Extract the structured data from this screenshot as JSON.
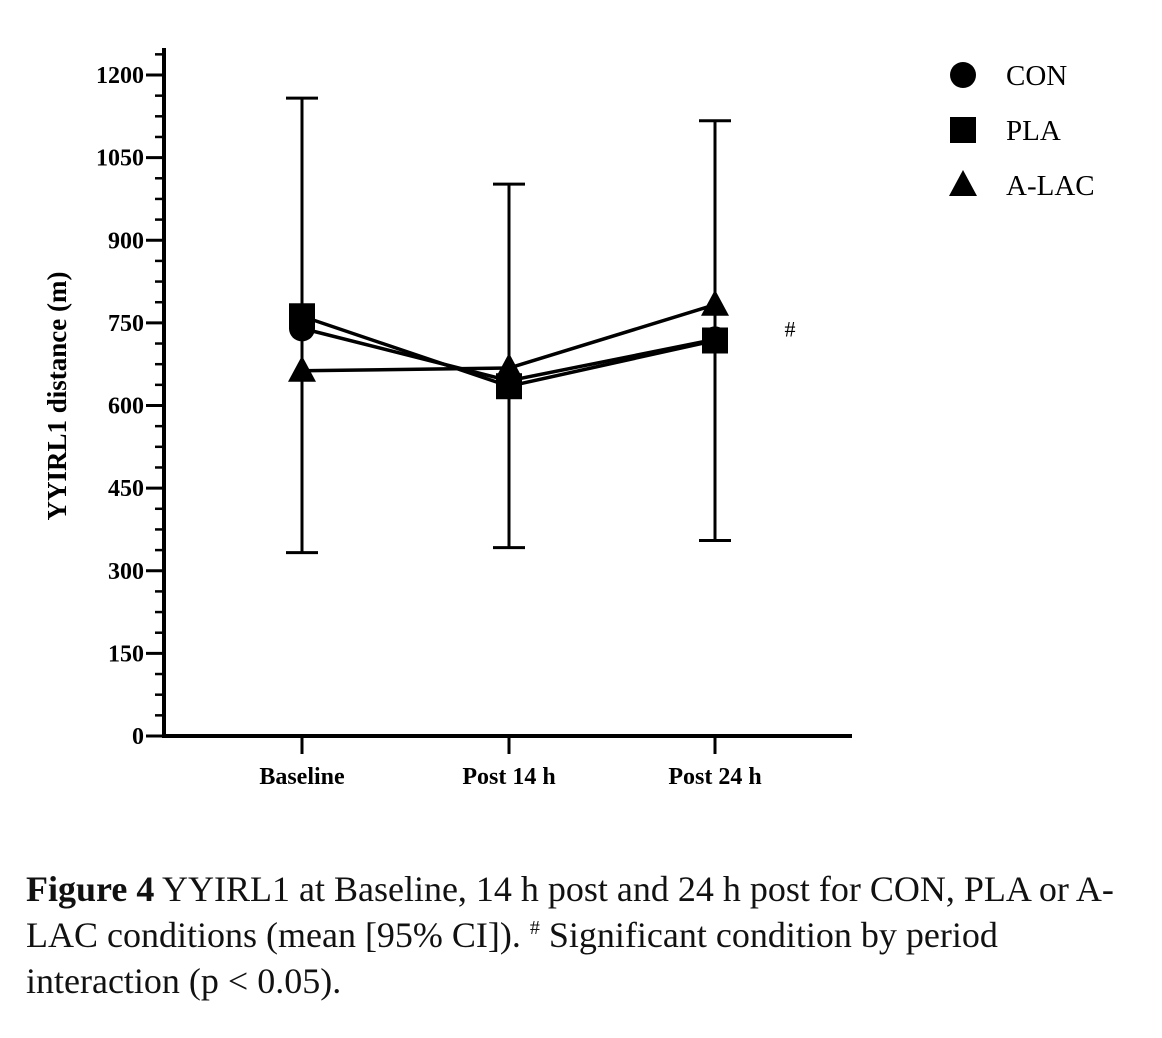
{
  "chart_data": {
    "type": "line",
    "ylabel": "YYIRL1 distance (m)",
    "xlabel": "",
    "categories": [
      "Baseline",
      "Post 14 h",
      "Post 24 h"
    ],
    "ylim": [
      0,
      1250
    ],
    "yticks": [
      0,
      150,
      300,
      450,
      600,
      750,
      900,
      1050,
      1200
    ],
    "series": [
      {
        "name": "CON",
        "marker": "circle",
        "values": [
          740,
          645,
          720
        ]
      },
      {
        "name": "PLA",
        "marker": "square",
        "values": [
          762,
          635,
          718
        ]
      },
      {
        "name": "A-LAC",
        "marker": "triangle",
        "values": [
          663,
          668,
          783
        ]
      }
    ],
    "error_bars": {
      "upper": [
        1158,
        1002,
        1117
      ],
      "lower": [
        333,
        342,
        355
      ]
    },
    "annotations": [
      {
        "text": "#",
        "x": "Post 24 h",
        "y": 740
      }
    ],
    "legend_position": "top-right",
    "grid": false,
    "line_color": "#000000"
  },
  "caption": {
    "label": "Figure 4",
    "text_part1": " YYIRL1 at Baseline, 14 h post and 24 h post for CON, PLA or A-LAC conditions (mean [95% CI]). ",
    "superscript": "#",
    "text_part2": " Significant condition by period interaction (p < 0.05)."
  }
}
